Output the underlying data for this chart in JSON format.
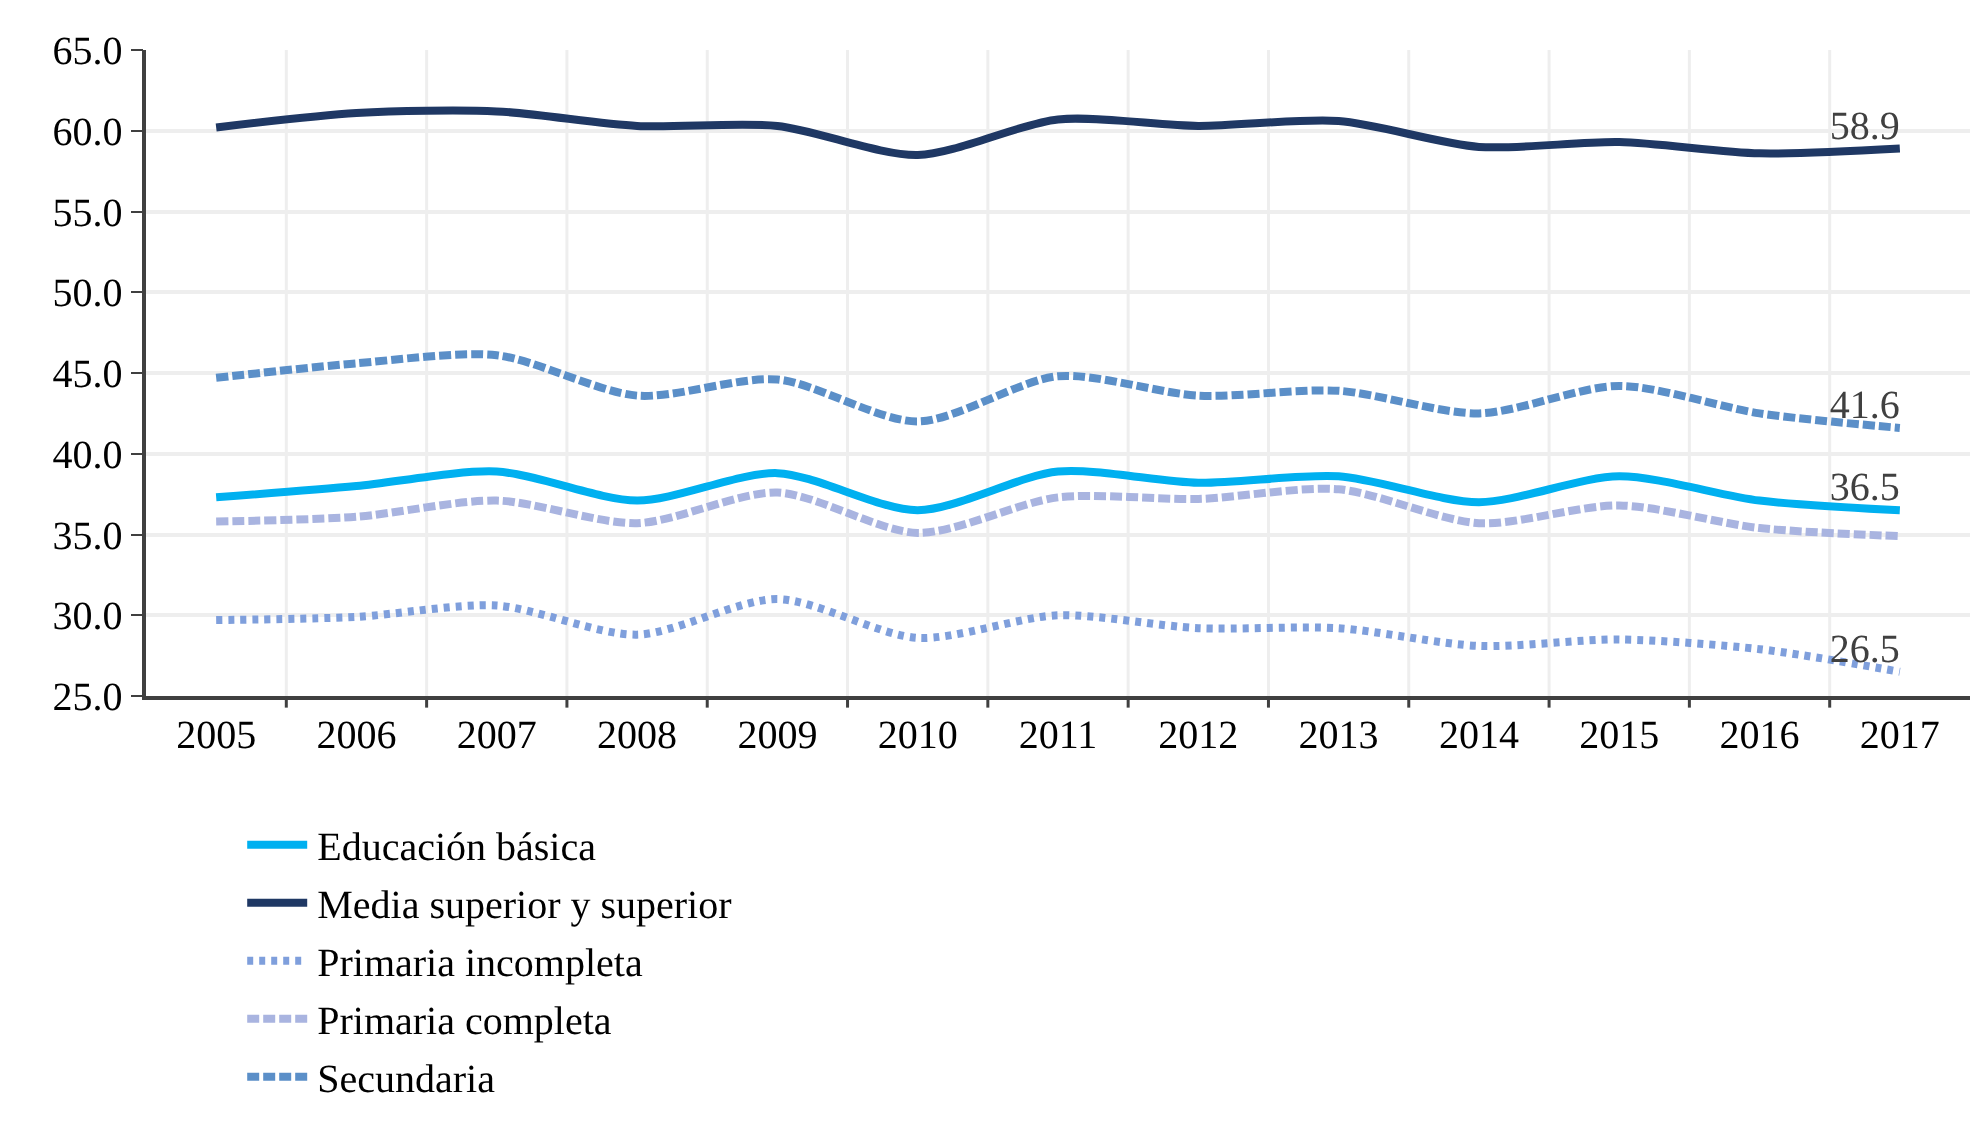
{
  "chart_data": {
    "type": "line",
    "categories": [
      "2005",
      "2006",
      "2007",
      "2008",
      "2009",
      "2010",
      "2011",
      "2012",
      "2013",
      "2014",
      "2015",
      "2016",
      "2017"
    ],
    "series": [
      {
        "name": "Educación básica",
        "color": "#00b0f0",
        "line_style": "solid",
        "values": [
          37.3,
          38.0,
          38.9,
          37.1,
          38.8,
          36.5,
          38.9,
          38.2,
          38.6,
          37.0,
          38.6,
          37.1,
          36.5
        ],
        "value_labels": [
          null,
          null,
          null,
          null,
          null,
          null,
          null,
          null,
          null,
          null,
          null,
          null,
          "36.5"
        ]
      },
      {
        "name": "Media superior y superior",
        "color": "#1f3864",
        "line_style": "solid",
        "values": [
          60.2,
          61.1,
          61.2,
          60.3,
          60.3,
          58.5,
          60.7,
          60.3,
          60.6,
          59.0,
          59.3,
          58.6,
          58.9
        ],
        "value_labels": [
          null,
          null,
          null,
          null,
          null,
          null,
          null,
          null,
          null,
          null,
          null,
          null,
          "58.9"
        ]
      },
      {
        "name": "Primaria incompleta",
        "color": "#7f9fdc",
        "line_style": "dotted",
        "values": [
          29.7,
          29.9,
          30.6,
          28.8,
          31.0,
          28.6,
          30.0,
          29.2,
          29.2,
          28.1,
          28.5,
          27.9,
          26.5
        ],
        "value_labels": [
          null,
          null,
          null,
          null,
          null,
          null,
          null,
          null,
          null,
          null,
          null,
          null,
          "26.5"
        ]
      },
      {
        "name": "Primaria completa",
        "color": "#a9b4e0",
        "line_style": "dashed",
        "values": [
          35.8,
          36.1,
          37.1,
          35.7,
          37.6,
          35.1,
          37.3,
          37.2,
          37.8,
          35.7,
          36.8,
          35.4,
          34.9
        ]
      },
      {
        "name": "Secundaria",
        "color": "#5b8fc8",
        "line_style": "dashed",
        "values": [
          44.7,
          45.6,
          46.1,
          43.6,
          44.6,
          42.0,
          44.8,
          43.6,
          43.9,
          42.5,
          44.2,
          42.5,
          41.6
        ],
        "value_labels": [
          null,
          null,
          null,
          null,
          null,
          null,
          null,
          null,
          null,
          null,
          null,
          null,
          "41.6"
        ]
      }
    ],
    "ylim": [
      25,
      65
    ],
    "yticks": [
      {
        "value": 25,
        "label": "25.0"
      },
      {
        "value": 30,
        "label": "30.0"
      },
      {
        "value": 35,
        "label": "35.0"
      },
      {
        "value": 40,
        "label": "40.0"
      },
      {
        "value": 45,
        "label": "45.0"
      },
      {
        "value": 50,
        "label": "50.0"
      },
      {
        "value": 55,
        "label": "55.0"
      },
      {
        "value": 60,
        "label": "60.0"
      },
      {
        "value": 65,
        "label": "65.0"
      }
    ],
    "grid": true,
    "legend": "bottom"
  }
}
